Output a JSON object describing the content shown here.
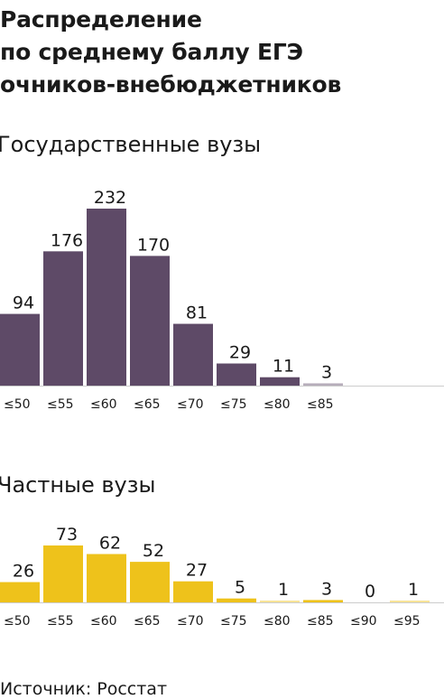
{
  "title_lines": [
    "Распределение",
    "по среднему баллу ЕГЭ",
    "очников-внебюджетников"
  ],
  "source": "Источник: Росстат",
  "colors": {
    "state": "#5e4a67",
    "private": "#eec21b",
    "baseline": "#cccccc"
  },
  "chart_data": [
    {
      "type": "bar",
      "title": "Государственные вузы",
      "categories": [
        "≤50",
        "≤55",
        "≤60",
        "≤65",
        "≤70",
        "≤75",
        "≤80",
        "≤85"
      ],
      "values": [
        94,
        176,
        232,
        170,
        81,
        29,
        11,
        3
      ],
      "ylim": [
        0,
        232
      ],
      "grid": false,
      "legend": "none"
    },
    {
      "type": "bar",
      "title": "Частные вузы",
      "categories": [
        "≤50",
        "≤55",
        "≤60",
        "≤65",
        "≤70",
        "≤75",
        "≤80",
        "≤85",
        "≤90",
        "≤95"
      ],
      "values": [
        26,
        73,
        62,
        52,
        27,
        5,
        1,
        3,
        0,
        1
      ],
      "ylim": [
        0,
        73
      ],
      "grid": false,
      "legend": "none"
    }
  ]
}
